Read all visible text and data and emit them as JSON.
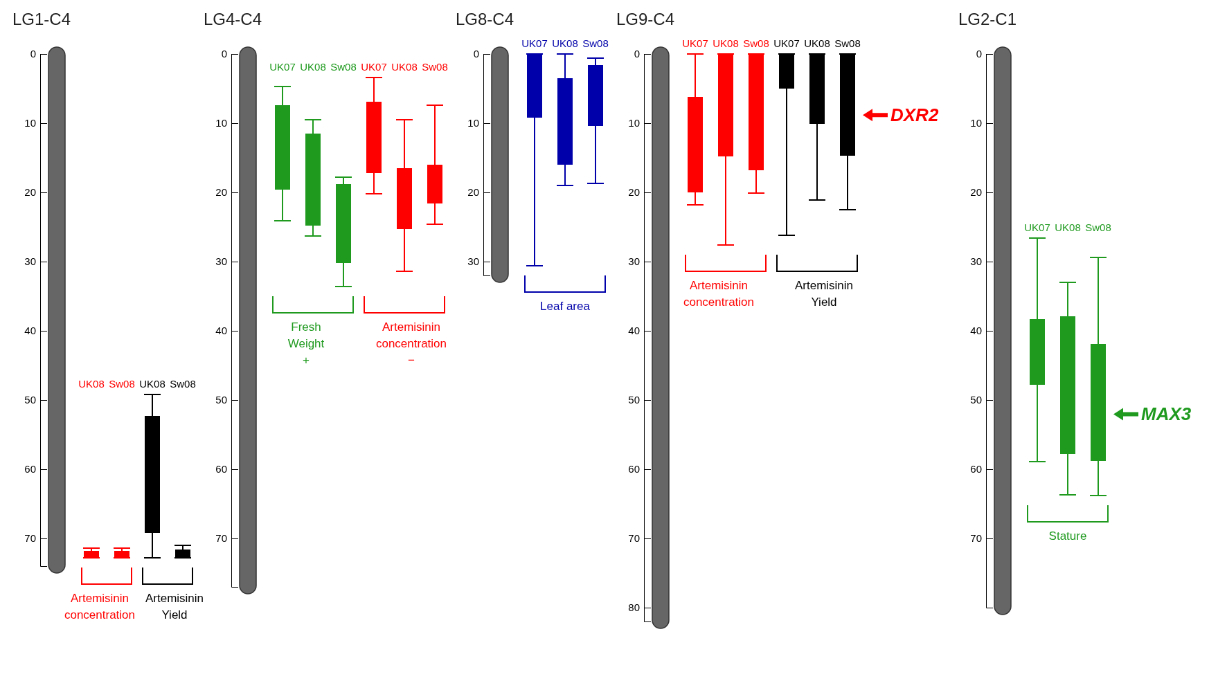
{
  "chart_data": [
    {
      "type": "bar",
      "title": "LG1-C4",
      "categories": [
        "UK08",
        "Sw08",
        "UK08",
        "Sw08"
      ],
      "ylim": [
        74,
        0
      ],
      "yticks": [
        0,
        10,
        20,
        30,
        40,
        50,
        60,
        70
      ],
      "tick_labels": "y",
      "legend": "bottom",
      "series": [
        {
          "name": "Artemisinin concentration",
          "color": "#ff0000",
          "values": [
            1.0,
            1.0,
            null,
            null
          ],
          "base": [
            71.8,
            71.8,
            null,
            null
          ],
          "errors": [
            [
              71.4,
              72.8
            ],
            [
              71.4,
              72.8
            ],
            null,
            null
          ]
        },
        {
          "name": "Artemisinin Yield",
          "color": "#000000",
          "values": [
            null,
            null,
            16.9,
            1.2
          ],
          "base": [
            null,
            null,
            52.3,
            71.6
          ],
          "errors": [
            null,
            null,
            [
              49.2,
              72.8
            ],
            [
              71.0,
              72.8
            ]
          ]
        }
      ]
    },
    {
      "type": "bar",
      "title": "LG4-C4",
      "categories": [
        "UK07",
        "UK08",
        "Sw08",
        "UK07",
        "UK08",
        "Sw08"
      ],
      "ylim": [
        77,
        0
      ],
      "yticks": [
        0,
        10,
        20,
        30,
        40,
        50,
        60,
        70
      ],
      "tick_labels": "y",
      "legend": "bottom",
      "series": [
        {
          "name": "Fresh Weight +",
          "color": "#1f9a1f",
          "values": [
            12.2,
            13.3,
            11.4,
            null,
            null,
            null
          ],
          "base": [
            7.4,
            11.5,
            18.8,
            null,
            null,
            null
          ],
          "errors": [
            [
              4.7,
              24.1
            ],
            [
              9.5,
              26.3
            ],
            [
              17.8,
              33.6
            ],
            null,
            null,
            null
          ]
        },
        {
          "name": "Artemisinin concentration −",
          "color": "#ff0000",
          "values": [
            null,
            null,
            null,
            10.3,
            8.8,
            5.6
          ],
          "base": [
            null,
            null,
            null,
            6.9,
            16.5,
            16.0
          ],
          "errors": [
            null,
            null,
            null,
            [
              3.4,
              20.2
            ],
            [
              9.5,
              31.4
            ],
            [
              7.4,
              24.6
            ]
          ]
        }
      ]
    },
    {
      "type": "bar",
      "title": "LG8-C4",
      "categories": [
        "UK07",
        "UK08",
        "Sw08"
      ],
      "ylim": [
        32,
        0
      ],
      "yticks": [
        0,
        10,
        20,
        30
      ],
      "tick_labels": "y",
      "legend": "bottom",
      "series": [
        {
          "name": "Leaf area",
          "color": "#0000aa",
          "values": [
            9.2,
            12.5,
            8.8
          ],
          "base": [
            0,
            3.5,
            1.6
          ],
          "errors": [
            [
              0,
              30.6
            ],
            [
              0,
              19.0
            ],
            [
              0.6,
              18.7
            ]
          ]
        }
      ]
    },
    {
      "type": "bar",
      "title": "LG9-C4",
      "categories": [
        "UK07",
        "UK08",
        "Sw08",
        "UK07",
        "UK08",
        "Sw08"
      ],
      "ylim": [
        82,
        0
      ],
      "yticks": [
        0,
        10,
        20,
        30,
        40,
        50,
        60,
        70,
        80
      ],
      "tick_labels": "y",
      "legend": "top left",
      "annotations": [
        "DXR2"
      ],
      "series": [
        {
          "name": "Artemisinin concentration",
          "color": "#ff0000",
          "values": [
            13.8,
            14.8,
            16.8,
            null,
            null,
            null
          ],
          "base": [
            6.2,
            0,
            0,
            null,
            null,
            null
          ],
          "errors": [
            [
              0,
              21.8
            ],
            [
              0,
              27.6
            ],
            [
              0,
              20.1
            ],
            null,
            null,
            null
          ]
        },
        {
          "name": "Artemisinin Yield",
          "color": "#000000",
          "values": [
            null,
            null,
            null,
            5.0,
            10.1,
            14.7
          ],
          "base": [
            null,
            null,
            null,
            0,
            0,
            0
          ],
          "errors": [
            null,
            null,
            null,
            [
              0,
              26.2
            ],
            [
              0,
              21.1
            ],
            [
              0,
              22.5
            ]
          ]
        }
      ]
    },
    {
      "type": "bar",
      "title": "LG2-C1",
      "categories": [
        "UK07",
        "UK08",
        "Sw08"
      ],
      "ylim": [
        80,
        0
      ],
      "yticks": [
        0,
        10,
        20,
        30,
        40,
        50,
        60,
        70
      ],
      "tick_labels": "y",
      "legend": "bottom",
      "annotations": [
        "MAX3"
      ],
      "series": [
        {
          "name": "Stature",
          "color": "#1f9a1f",
          "values": [
            9.5,
            19.9,
            16.9
          ],
          "base": [
            38.3,
            37.9,
            41.9
          ],
          "errors": [
            [
              26.6,
              58.9
            ],
            [
              33.0,
              63.7
            ],
            [
              29.4,
              63.8
            ]
          ]
        }
      ]
    }
  ]
}
